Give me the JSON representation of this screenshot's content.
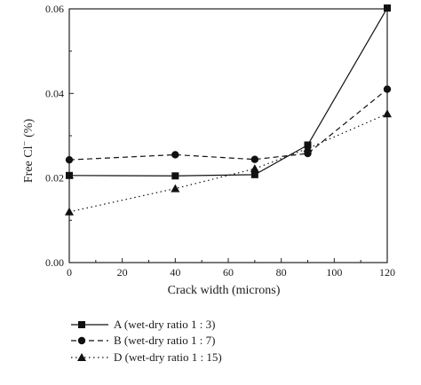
{
  "chart_data": {
    "type": "line",
    "xlabel": "Crack width (microns)",
    "ylabel_main": "Free Cl",
    "ylabel_sup": "−",
    "ylabel_unit": "(%)",
    "xlim": [
      0,
      120
    ],
    "ylim": [
      0,
      0.06
    ],
    "xticks": [
      0,
      20,
      40,
      60,
      80,
      100,
      120
    ],
    "yticks": [
      0.0,
      0.02,
      0.04,
      0.06
    ],
    "ytick_labels": [
      "0.00",
      "0.02",
      "0.04",
      "0.06"
    ],
    "grid": false,
    "legend_position": "bottom",
    "series": [
      {
        "name": "A (wet-dry ratio 1 : 3)",
        "marker": "square",
        "dash": "solid",
        "x": [
          0,
          40,
          70,
          90,
          120
        ],
        "y": [
          0.0206,
          0.0205,
          0.0208,
          0.0278,
          0.0602
        ]
      },
      {
        "name": "B (wet-dry ratio 1 : 7)",
        "marker": "circle",
        "dash": "dashed",
        "x": [
          0,
          40,
          70,
          90,
          120
        ],
        "y": [
          0.0243,
          0.0255,
          0.0244,
          0.0258,
          0.041
        ]
      },
      {
        "name": "D (wet-dry ratio 1 : 15)",
        "marker": "triangle",
        "dash": "dotted",
        "x": [
          0,
          40,
          70,
          90,
          120
        ],
        "y": [
          0.012,
          0.0175,
          0.0222,
          0.027,
          0.0352
        ]
      }
    ]
  }
}
